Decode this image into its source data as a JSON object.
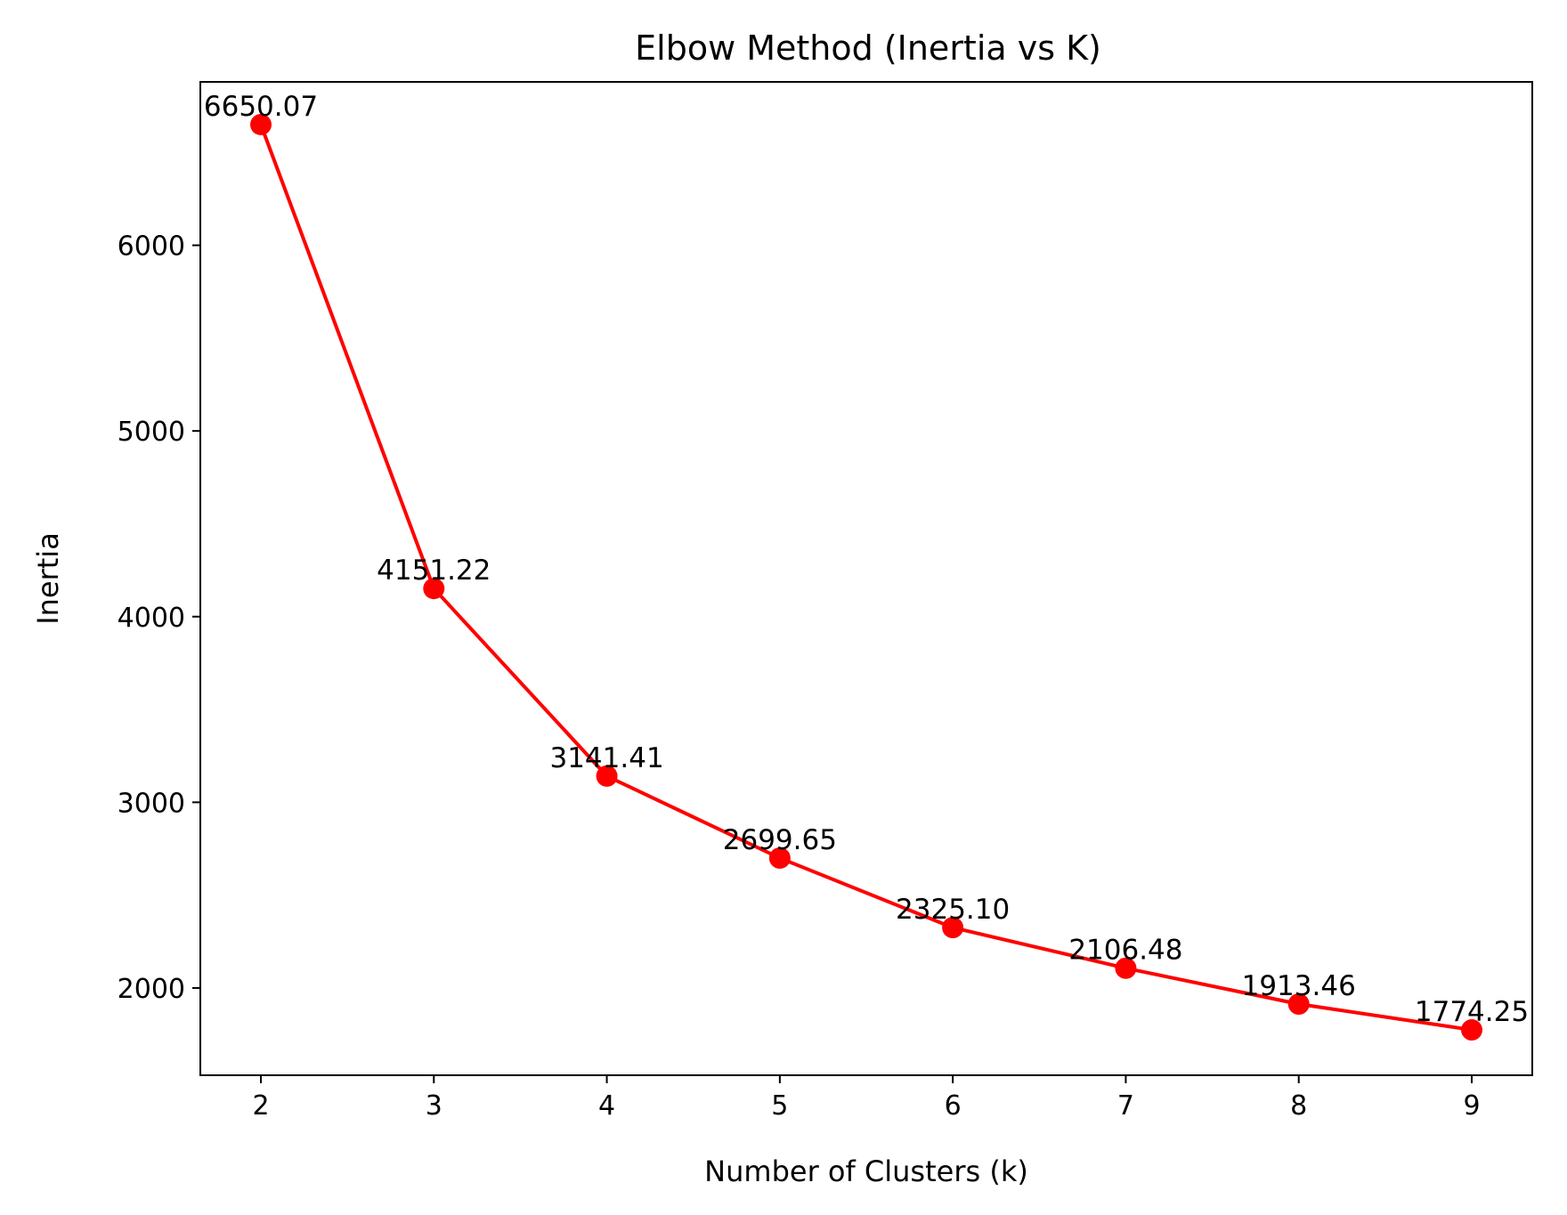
{
  "chart_data": {
    "type": "line",
    "title": "Elbow Method (Inertia vs K)",
    "xlabel": "Number of Clusters (k)",
    "ylabel": "Inertia",
    "x": [
      2,
      3,
      4,
      5,
      6,
      7,
      8,
      9
    ],
    "series": [
      {
        "values": [
          6650.07,
          4151.22,
          3141.41,
          2699.65,
          2325.1,
          2106.48,
          1913.46,
          1774.25
        ],
        "data_labels": [
          "6650.07",
          "4151.22",
          "3141.41",
          "2699.65",
          "2325.10",
          "2106.48",
          "1913.46",
          "1774.25"
        ],
        "color": "#ff0000",
        "marker": "circle"
      }
    ],
    "xticks": [
      2,
      3,
      4,
      5,
      6,
      7,
      8,
      9
    ],
    "xtick_labels": [
      "2",
      "3",
      "4",
      "5",
      "6",
      "7",
      "8",
      "9"
    ],
    "yticks": [
      2000,
      3000,
      4000,
      5000,
      6000
    ],
    "ytick_labels": [
      "2000",
      "3000",
      "4000",
      "5000",
      "6000"
    ],
    "xlim": [
      1.65,
      9.35
    ],
    "ylim": [
      1530,
      6880
    ],
    "grid": false,
    "legend": "none"
  }
}
